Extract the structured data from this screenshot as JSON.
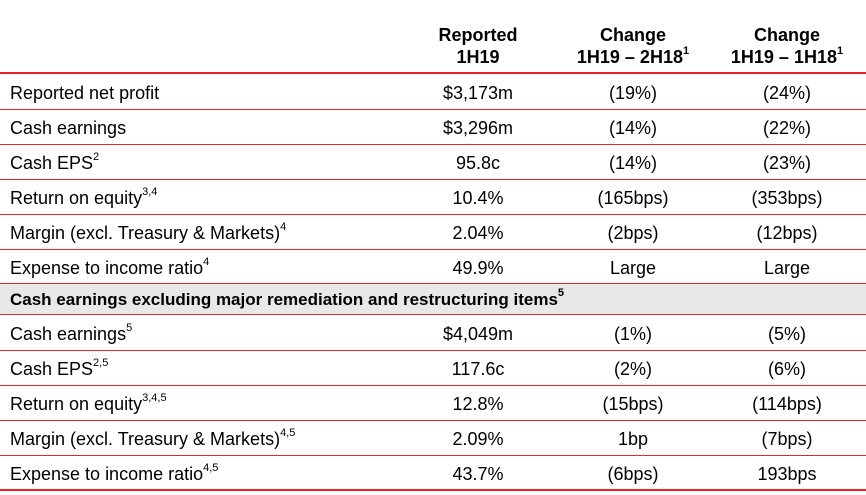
{
  "header": {
    "col1_line1": "Reported",
    "col1_line2": "1H19",
    "col2_line1": "Change",
    "col2_line2": "1H19 – 2H18",
    "col2_sup": "1",
    "col3_line1": "Change",
    "col3_line2": "1H19 – 1H18",
    "col3_sup": "1"
  },
  "rows": [
    {
      "label": "Reported net profit",
      "sup": "",
      "v1": "$3,173m",
      "v2": "(19%)",
      "v3": "(24%)"
    },
    {
      "label": "Cash earnings",
      "sup": "",
      "v1": "$3,296m",
      "v2": "(14%)",
      "v3": "(22%)"
    },
    {
      "label": "Cash EPS",
      "sup": "2",
      "v1": "95.8c",
      "v2": "(14%)",
      "v3": "(23%)"
    },
    {
      "label": "Return on equity",
      "sup": "3,4",
      "v1": "10.4%",
      "v2": "(165bps)",
      "v3": "(353bps)"
    },
    {
      "label": "Margin (excl. Treasury & Markets)",
      "sup": "4",
      "v1": "2.04%",
      "v2": "(2bps)",
      "v3": "(12bps)"
    },
    {
      "label": "Expense to income ratio",
      "sup": "4",
      "v1": "49.9%",
      "v2": "Large",
      "v3": "Large"
    }
  ],
  "section": {
    "title": "Cash earnings excluding major remediation and restructuring items",
    "sup": "5"
  },
  "rows2": [
    {
      "label": "Cash earnings",
      "sup": "5",
      "v1": "$4,049m",
      "v2": "(1%)",
      "v3": "(5%)"
    },
    {
      "label": "Cash EPS",
      "sup": "2,5",
      "v1": "117.6c",
      "v2": "(2%)",
      "v3": "(6%)"
    },
    {
      "label": "Return on equity",
      "sup": "3,4,5",
      "v1": "12.8%",
      "v2": "(15bps)",
      "v3": "(114bps)"
    },
    {
      "label": "Margin (excl. Treasury & Markets)",
      "sup": "4,5",
      "v1": "2.09%",
      "v2": "1bp",
      "v3": "(7bps)"
    },
    {
      "label": "Expense to income ratio",
      "sup": "4,5",
      "v1": "43.7%",
      "v2": "(6bps)",
      "v3": "193bps"
    }
  ],
  "colors": {
    "rule": "#e8242b",
    "section_bg": "#e8e8e8"
  }
}
